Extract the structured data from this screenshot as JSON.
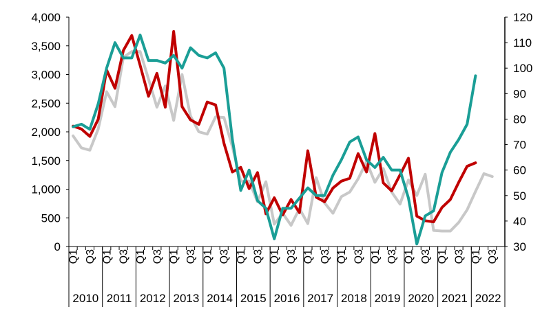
{
  "chart_data": {
    "type": "line",
    "title": "",
    "xlabel": "",
    "ylabel": "",
    "y_left": {
      "min": 0,
      "max": 4000,
      "ticks": [
        "0",
        "500",
        "1,000",
        "1,500",
        "2,000",
        "2,500",
        "3,000",
        "3,500",
        "4,000"
      ]
    },
    "y_right": {
      "min": 30,
      "max": 120,
      "ticks": [
        "30",
        "40",
        "50",
        "60",
        "70",
        "80",
        "90",
        "100",
        "110",
        "120"
      ]
    },
    "quarter_labels": [
      "Q1",
      "Q3"
    ],
    "years": [
      "2010",
      "2011",
      "2012",
      "2013",
      "2014",
      "2015",
      "2016",
      "2017",
      "2018",
      "2019",
      "2020",
      "2021",
      "2022"
    ],
    "grid": false,
    "legend": "none",
    "series": [
      {
        "axis": "left",
        "color": "#c8c8c8",
        "values": [
          1930,
          1720,
          1680,
          2050,
          2700,
          2440,
          3300,
          3400,
          3400,
          2920,
          2430,
          2800,
          2200,
          3000,
          2280,
          2000,
          1960,
          2260,
          2250,
          1740,
          1140,
          1140,
          780,
          1130,
          390,
          580,
          370,
          660,
          400,
          1200,
          760,
          580,
          870,
          950,
          1180,
          1480,
          1120,
          1360,
          950,
          740,
          1160,
          890,
          1260,
          280,
          270,
          270,
          420,
          640,
          960,
          1270,
          1220
        ]
      },
      {
        "axis": "left",
        "color": "#c00000",
        "values": [
          2100,
          2050,
          1920,
          2220,
          3080,
          2760,
          3420,
          3680,
          3160,
          2620,
          3020,
          2430,
          3750,
          2440,
          2210,
          2130,
          2520,
          2470,
          1800,
          1300,
          1380,
          1010,
          1290,
          570,
          850,
          550,
          820,
          590,
          1670,
          860,
          780,
          1020,
          1140,
          1190,
          1620,
          1300,
          1970,
          1110,
          970,
          1250,
          1540,
          530,
          450,
          430,
          680,
          820,
          1120,
          1400,
          1460
        ]
      },
      {
        "axis": "right",
        "color": "#1a9e96",
        "values": [
          77,
          78,
          76,
          86,
          100,
          110,
          104,
          104,
          113,
          103,
          103,
          102,
          105,
          100,
          108,
          105,
          104,
          106,
          100,
          72,
          52,
          60,
          48,
          45,
          33,
          45,
          45,
          49,
          53,
          50,
          50,
          58,
          64,
          71,
          73,
          64,
          61,
          65,
          60,
          60,
          49,
          31,
          42,
          44,
          59,
          67,
          72,
          78,
          97
        ]
      }
    ]
  }
}
